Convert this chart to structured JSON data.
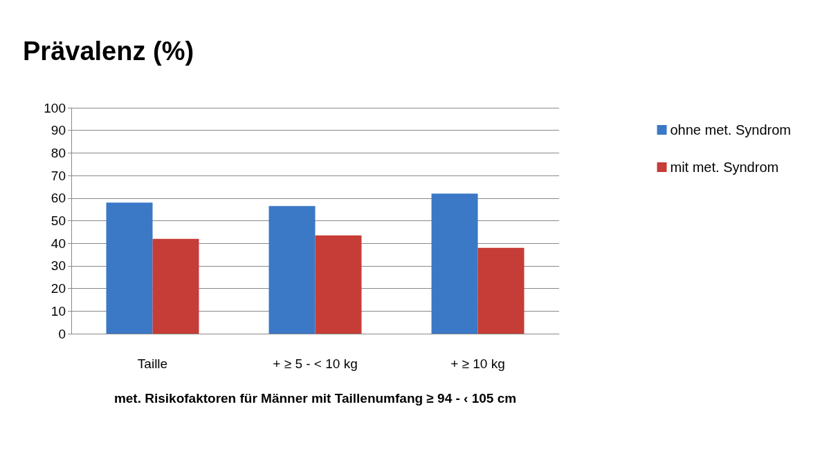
{
  "chart_data": {
    "type": "bar",
    "title": "Prävalenz (%)",
    "xlabel": "met. Risikofaktoren für Männer mit Taillenumfang ≥ 94 - ‹ 105 cm",
    "categories": [
      "Taille",
      "+ ≥ 5 - < 10 kg",
      "+ ≥ 10 kg"
    ],
    "series": [
      {
        "name": "ohne met. Syndrom",
        "color": "#3b78c6",
        "values": [
          58,
          56.5,
          62
        ]
      },
      {
        "name": "mit met. Syndrom",
        "color": "#c63c36",
        "values": [
          42,
          43.5,
          38
        ]
      }
    ],
    "ylim": [
      0,
      100
    ],
    "yticks": [
      0,
      10,
      20,
      30,
      40,
      50,
      60,
      70,
      80,
      90,
      100
    ],
    "grid": "y",
    "legend": "right"
  }
}
